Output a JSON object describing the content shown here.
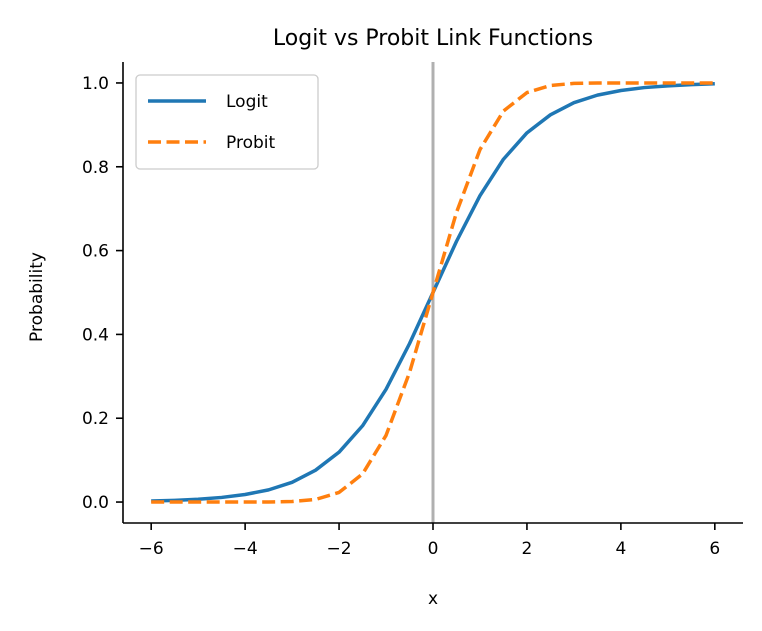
{
  "chart_data": {
    "type": "line",
    "title": "Logit vs Probit Link Functions",
    "xlabel": "x",
    "ylabel": "Probability",
    "xlim": [
      -6.6,
      6.6
    ],
    "ylim": [
      -0.05,
      1.05
    ],
    "x_ticks": [
      -6,
      -4,
      -2,
      0,
      2,
      4,
      6
    ],
    "x_tick_labels": [
      "−6",
      "−4",
      "−2",
      "0",
      "2",
      "4",
      "6"
    ],
    "y_ticks": [
      0.0,
      0.2,
      0.4,
      0.6,
      0.8,
      1.0
    ],
    "y_tick_labels": [
      "0.0",
      "0.2",
      "0.4",
      "0.6",
      "0.8",
      "1.0"
    ],
    "grid": false,
    "legend_position": "top-left",
    "reference_line": {
      "orientation": "vertical",
      "x": 0,
      "color": "#b0b0b0"
    },
    "x": [
      -6,
      -5.5,
      -5,
      -4.5,
      -4,
      -3.5,
      -3,
      -2.5,
      -2,
      -1.5,
      -1,
      -0.5,
      0,
      0.5,
      1,
      1.5,
      2,
      2.5,
      3,
      3.5,
      4,
      4.5,
      5,
      5.5,
      6
    ],
    "series": [
      {
        "name": "Logit",
        "color": "#1f77b4",
        "dash": "solid",
        "values": [
          0.0025,
          0.0041,
          0.0067,
          0.011,
          0.018,
          0.029,
          0.047,
          0.076,
          0.119,
          0.182,
          0.269,
          0.378,
          0.5,
          0.622,
          0.731,
          0.818,
          0.881,
          0.924,
          0.953,
          0.971,
          0.982,
          0.989,
          0.993,
          0.996,
          0.998
        ]
      },
      {
        "name": "Probit",
        "color": "#ff7f0e",
        "dash": "dashed",
        "values": [
          0.0,
          0.0,
          0.0,
          0.0,
          0.0,
          0.0002,
          0.0013,
          0.0062,
          0.023,
          0.067,
          0.159,
          0.309,
          0.5,
          0.691,
          0.841,
          0.933,
          0.977,
          0.994,
          0.999,
          1.0,
          1.0,
          1.0,
          1.0,
          1.0,
          1.0
        ]
      }
    ]
  }
}
